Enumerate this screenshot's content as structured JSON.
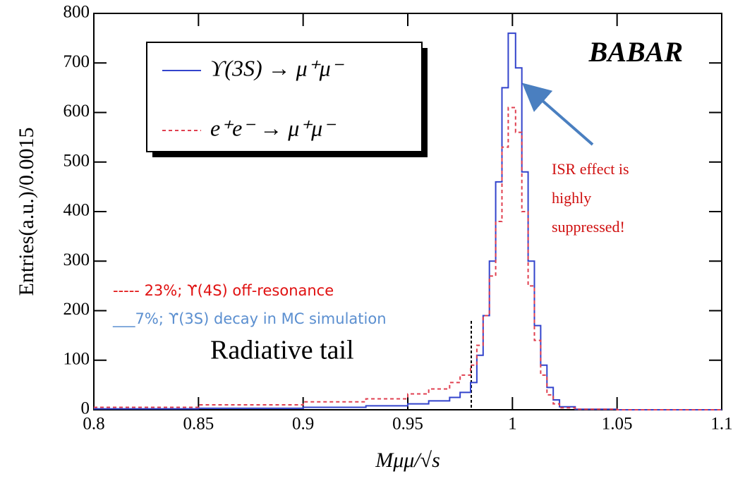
{
  "chart_data": {
    "type": "histogram",
    "y_label": "Entries(a.u.)/0.0015",
    "x_label": "Mμμ/√s",
    "logo": "BABAR",
    "bins": [
      0.8,
      0.85,
      0.9,
      0.93,
      0.95,
      0.96,
      0.97,
      0.975,
      0.98,
      0.983,
      0.986,
      0.989,
      0.992,
      0.995,
      0.998,
      1.0015,
      1.0045,
      1.0075,
      1.0105,
      1.0135,
      1.0165,
      1.0195,
      1.0225,
      1.03,
      1.05,
      1.1
    ],
    "series": [
      {
        "name": "ϒ(3S) → μ⁺μ⁻",
        "color": "#3344cc",
        "dashed": false,
        "values": [
          2,
          3,
          5,
          8,
          12,
          18,
          25,
          35,
          55,
          110,
          190,
          300,
          460,
          650,
          760,
          690,
          480,
          300,
          170,
          90,
          45,
          20,
          6,
          1,
          0
        ]
      },
      {
        "name": "e⁺e⁻ → μ⁺μ⁻",
        "color": "#e04050",
        "dashed": true,
        "values": [
          5,
          10,
          16,
          22,
          32,
          42,
          55,
          70,
          90,
          130,
          190,
          270,
          380,
          530,
          610,
          560,
          400,
          250,
          140,
          70,
          30,
          12,
          4,
          1,
          0
        ]
      }
    ],
    "xlim": [
      0.8,
      1.1
    ],
    "xticks": [
      0.8,
      0.85,
      0.9,
      0.95,
      1,
      1.05,
      1.1
    ],
    "ylim": [
      0,
      800
    ],
    "yticks": [
      0,
      100,
      200,
      300,
      400,
      500,
      600,
      700,
      800
    ],
    "annotations": {
      "isr": [
        "ISR effect is",
        "highly",
        "suppressed!"
      ],
      "off_resonance": "----- 23%; ϒ(4S) off-resonance",
      "mc_decay": "___7%; ϒ(3S) decay in MC simulation",
      "radiative_tail": "Radiative tail"
    }
  }
}
